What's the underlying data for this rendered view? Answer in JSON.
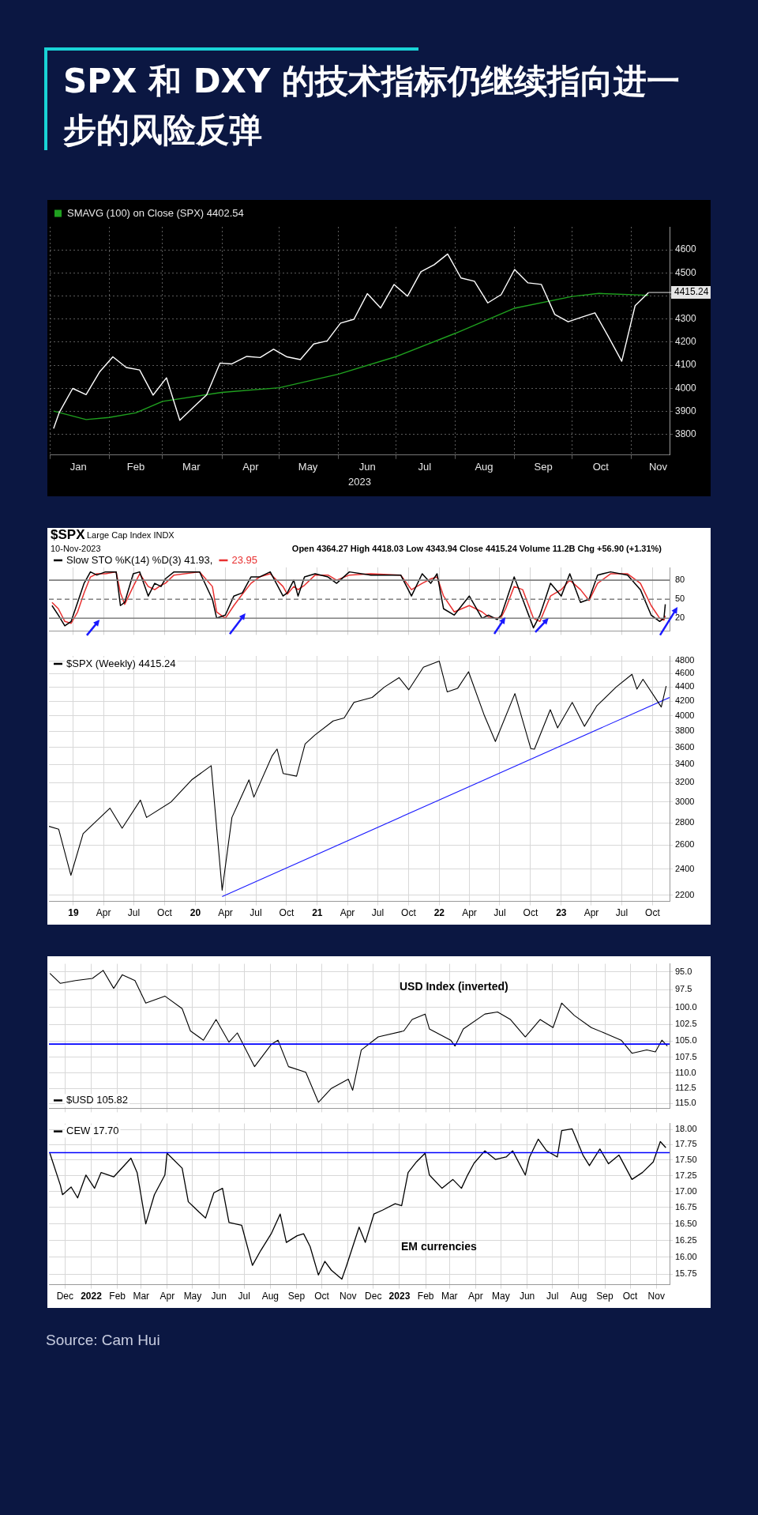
{
  "chart_data": [
    {
      "type": "line",
      "title": "SPX 和 DXY 的技术指标仍继续指向进一步的风险反弹",
      "xlabel": "2023",
      "legend": "top left",
      "grid": true,
      "marker": "none",
      "xlim": [
        "2023-01-01",
        "2023-11-21"
      ],
      "ylim": [
        3710,
        4700
      ],
      "yticks": [
        3800,
        3900,
        4000,
        4100,
        4200,
        4300,
        {
          "value": 4400,
          "label": null
        },
        4500,
        4600
      ],
      "xticks": [
        {
          "value": "2023-01-01",
          "label": null
        },
        {
          "value": "2023-01-16",
          "label": "Jan"
        },
        {
          "value": "2023-02-01",
          "label": null
        },
        {
          "value": "2023-02-15",
          "label": "Feb"
        },
        {
          "value": "2023-03-01",
          "label": null
        },
        {
          "value": "2023-03-16",
          "label": "Mar"
        },
        {
          "value": "2023-04-01",
          "label": null
        },
        {
          "value": "2023-04-16",
          "label": "Apr"
        },
        {
          "value": "2023-05-01",
          "label": null
        },
        {
          "value": "2023-05-16",
          "label": "May"
        },
        {
          "value": "2023-06-01",
          "label": null
        },
        {
          "value": "2023-06-16",
          "label": "Jun"
        },
        {
          "value": "2023-07-01",
          "label": null
        },
        {
          "value": "2023-07-16",
          "label": "Jul"
        },
        {
          "value": "2023-08-01",
          "label": null
        },
        {
          "value": "2023-08-16",
          "label": "Aug"
        },
        {
          "value": "2023-09-01",
          "label": null
        },
        {
          "value": "2023-09-16",
          "label": "Sep"
        },
        {
          "value": "2023-10-01",
          "label": null
        },
        {
          "value": "2023-10-16",
          "label": "Oct"
        },
        {
          "value": "2023-11-01",
          "label": null
        },
        {
          "value": "2023-11-15",
          "label": "Nov"
        }
      ],
      "x": [
        "2023-01-03",
        "2023-01-06",
        "2023-01-13",
        "2023-01-20",
        "2023-01-27",
        "2023-02-03",
        "2023-02-10",
        "2023-02-17",
        "2023-02-24",
        "2023-03-03",
        "2023-03-10",
        "2023-03-17",
        "2023-03-24",
        "2023-03-31",
        "2023-04-06",
        "2023-04-14",
        "2023-04-21",
        "2023-04-28",
        "2023-05-05",
        "2023-05-12",
        "2023-05-19",
        "2023-05-26",
        "2023-06-02",
        "2023-06-09",
        "2023-06-16",
        "2023-06-23",
        "2023-06-30",
        "2023-07-07",
        "2023-07-14",
        "2023-07-21",
        "2023-07-28",
        "2023-08-04",
        "2023-08-11",
        "2023-08-18",
        "2023-08-25",
        "2023-09-01",
        "2023-09-08",
        "2023-09-15",
        "2023-09-22",
        "2023-09-29",
        "2023-10-06",
        "2023-10-13",
        "2023-10-20",
        "2023-10-27",
        "2023-11-03",
        "2023-11-10"
      ],
      "series": [
        {
          "color": "#ffffff",
          "values": [
            3825,
            3895,
            3999,
            3972,
            4070,
            4136,
            4090,
            4079,
            3970,
            4045,
            3861,
            3917,
            3971,
            4109,
            4105,
            4138,
            4133,
            4169,
            4136,
            4124,
            4192,
            4205,
            4282,
            4299,
            4410,
            4348,
            4450,
            4399,
            4505,
            4536,
            4582,
            4478,
            4464,
            4370,
            4406,
            4515,
            4457,
            4450,
            4320,
            4288,
            4308,
            4327,
            4224,
            4117,
            4358,
            4415
          ]
        },
        {
          "name": "SMAVG (100) on Close (SPX) 4402.54",
          "color": "#1fa01f",
          "x": [
            "2023-01-03",
            "2023-01-20",
            "2023-02-01",
            "2023-02-15",
            "2023-03-01",
            "2023-04-01",
            "2023-05-01",
            "2023-06-01",
            "2023-07-01",
            "2023-08-01",
            "2023-09-01",
            "2023-10-01",
            "2023-10-15",
            "2023-11-10"
          ],
          "values": [
            3901,
            3864,
            3873,
            3893,
            3943,
            3982,
            4002,
            4061,
            4137,
            4238,
            4347,
            4398,
            4411,
            4403
          ]
        }
      ],
      "annotations": [
        {
          "text": "4415.24",
          "x": "2023-11-10",
          "y": 4415.24
        }
      ]
    },
    {
      "type": "line",
      "legend": "top left",
      "grid": "x",
      "marker": "none",
      "tick_labels": "y",
      "annotations": [
        "$SPX",
        "Large Cap Index INDX",
        "10-Nov-2023",
        "Open 4364.27 High 4418.03 Low 4343.94 Close 4415.24 Volume 11.2B Chg +56.90 (+1.31%)"
      ],
      "xlim": [
        2018.8,
        2023.888
      ],
      "ylim": [
        0,
        100
      ],
      "yticks": [
        20,
        50,
        80
      ],
      "xticks": [
        {
          "value": 2019,
          "label": null
        },
        {
          "value": 2019.247,
          "label": null
        },
        {
          "value": 2019.496,
          "label": null
        },
        {
          "value": 2019.748,
          "label": null
        },
        {
          "value": 2020,
          "label": null
        },
        {
          "value": 2020.247,
          "label": null
        },
        {
          "value": 2020.496,
          "label": null
        },
        {
          "value": 2020.748,
          "label": null
        },
        {
          "value": 2021,
          "label": null
        },
        {
          "value": 2021.247,
          "label": null
        },
        {
          "value": 2021.496,
          "label": null
        },
        {
          "value": 2021.748,
          "label": null
        },
        {
          "value": 2022,
          "label": null
        },
        {
          "value": 2022.247,
          "label": null
        },
        {
          "value": 2022.496,
          "label": null
        },
        {
          "value": 2022.748,
          "label": null
        },
        {
          "value": 2023,
          "label": null
        },
        {
          "value": 2023.247,
          "label": null
        },
        {
          "value": 2023.496,
          "label": null
        },
        {
          "value": 2023.748,
          "label": null
        }
      ],
      "ref_lines": [
        {
          "axis": "y",
          "value": 20,
          "color": "#808080",
          "line_style": "solid"
        },
        {
          "axis": "y",
          "value": 50,
          "color": "#808080",
          "line_style": "dashed"
        },
        {
          "axis": "y",
          "value": 80,
          "color": "#808080",
          "line_style": "solid"
        }
      ],
      "x": [
        2018.825,
        2018.877,
        2018.93,
        2018.982,
        2019.035,
        2019.088,
        2019.14,
        2019.193,
        2019.263,
        2019.351,
        2019.386,
        2019.421,
        2019.491,
        2019.544,
        2019.614,
        2019.667,
        2019.719,
        2019.754,
        2019.825,
        2020.035,
        2020.14,
        2020.175,
        2020.246,
        2020.316,
        2020.386,
        2020.456,
        2020.526,
        2020.614,
        2020.719,
        2020.754,
        2020.807,
        2020.842,
        2020.895,
        2020.982,
        2021.088,
        2021.158,
        2021.263,
        2021.439,
        2021.684,
        2021.772,
        2021.86,
        2021.93,
        2021.982,
        2022.035,
        2022.123,
        2022.246,
        2022.351,
        2022.404,
        2022.474,
        2022.509,
        2022.544,
        2022.614,
        2022.684,
        2022.772,
        2022.825,
        2022.912,
        2023.0,
        2023.07,
        2023.158,
        2023.228,
        2023.298,
        2023.404,
        2023.544,
        2023.649,
        2023.737,
        2023.807,
        2023.842,
        2023.853
      ],
      "series": [
        {
          "name": "Slow STO %K(14) %D(3) 41.93,",
          "color": "#000000",
          "values": [
            40,
            25,
            8,
            15,
            45,
            75,
            93,
            88,
            93,
            93,
            40,
            45,
            90,
            93,
            55,
            75,
            70,
            82,
            93,
            93,
            50,
            20,
            25,
            55,
            60,
            85,
            85,
            93,
            55,
            60,
            80,
            55,
            85,
            90,
            85,
            75,
            93,
            88,
            88,
            55,
            90,
            75,
            90,
            35,
            25,
            55,
            20,
            25,
            18,
            25,
            45,
            85,
            50,
            5,
            25,
            75,
            55,
            90,
            45,
            50,
            88,
            93,
            88,
            65,
            25,
            15,
            20,
            42
          ]
        },
        {
          "name": "23.95",
          "color": "#e83030",
          "values": [
            45,
            35,
            15,
            12,
            30,
            60,
            85,
            90,
            90,
            93,
            60,
            42,
            70,
            90,
            70,
            65,
            72,
            75,
            88,
            93,
            70,
            30,
            20,
            40,
            58,
            75,
            85,
            90,
            70,
            58,
            70,
            65,
            72,
            88,
            88,
            80,
            88,
            90,
            88,
            65,
            75,
            82,
            85,
            55,
            30,
            40,
            30,
            22,
            20,
            22,
            35,
            70,
            65,
            20,
            15,
            55,
            65,
            80,
            65,
            48,
            75,
            90,
            90,
            75,
            40,
            20,
            17,
            24
          ]
        }
      ]
    },
    {
      "type": "line",
      "legend": "top left",
      "grid": true,
      "marker": "none",
      "log": "y",
      "xlim": [
        2018.8,
        2023.888
      ],
      "ylim": [
        2155,
        4880
      ],
      "yticks": [
        2200,
        2400,
        2600,
        2800,
        3000,
        3200,
        3400,
        3600,
        3800,
        4000,
        4200,
        4400,
        4600,
        4800
      ],
      "xticks": [
        {
          "value": 2019,
          "label": "19"
        },
        {
          "value": 2019.247,
          "label": "Apr"
        },
        {
          "value": 2019.496,
          "label": "Jul"
        },
        {
          "value": 2019.748,
          "label": "Oct"
        },
        {
          "value": 2020,
          "label": "20"
        },
        {
          "value": 2020.247,
          "label": "Apr"
        },
        {
          "value": 2020.496,
          "label": "Jul"
        },
        {
          "value": 2020.748,
          "label": "Oct"
        },
        {
          "value": 2021,
          "label": "21"
        },
        {
          "value": 2021.247,
          "label": "Apr"
        },
        {
          "value": 2021.496,
          "label": "Jul"
        },
        {
          "value": 2021.748,
          "label": "Oct"
        },
        {
          "value": 2022,
          "label": "22"
        },
        {
          "value": 2022.247,
          "label": "Apr"
        },
        {
          "value": 2022.496,
          "label": "Jul"
        },
        {
          "value": 2022.748,
          "label": "Oct"
        },
        {
          "value": 2023,
          "label": "23"
        },
        {
          "value": 2023.247,
          "label": "Apr"
        },
        {
          "value": 2023.496,
          "label": "Jul"
        },
        {
          "value": 2023.748,
          "label": "Oct"
        }
      ],
      "series": [
        {
          "name": "$SPX (Weekly) 4415.24",
          "color": "#000000",
          "x": [
            2018.8,
            2018.88,
            2018.98,
            2019.08,
            2019.3,
            2019.4,
            2019.55,
            2019.6,
            2019.8,
            2019.97,
            2020.13,
            2020.22,
            2020.3,
            2020.44,
            2020.48,
            2020.63,
            2020.67,
            2020.72,
            2020.83,
            2020.9,
            2020.98,
            2021.13,
            2021.22,
            2021.3,
            2021.45,
            2021.55,
            2021.67,
            2021.75,
            2021.87,
            2022.0,
            2022.065,
            2022.15,
            2022.24,
            2022.37,
            2022.46,
            2022.62,
            2022.75,
            2022.78,
            2022.91,
            2022.97,
            2023.09,
            2023.19,
            2023.29,
            2023.45,
            2023.58,
            2023.62,
            2023.67,
            2023.82,
            2023.86
          ],
          "values": [
            2767,
            2740,
            2351,
            2700,
            2940,
            2750,
            3020,
            2850,
            3000,
            3230,
            3386,
            2237,
            2850,
            3230,
            3050,
            3500,
            3580,
            3300,
            3270,
            3640,
            3750,
            3930,
            3970,
            4180,
            4250,
            4400,
            4540,
            4360,
            4700,
            4796,
            4330,
            4380,
            4630,
            4000,
            3670,
            4305,
            3585,
            3577,
            4080,
            3840,
            4180,
            3860,
            4130,
            4400,
            4590,
            4370,
            4515,
            4117,
            4415
          ]
        },
        {
          "type": "line",
          "color": "#1a1aff",
          "x": [
            2020.22,
            2023.888
          ],
          "values": [
            2190,
            4250
          ]
        }
      ]
    },
    {
      "type": "line",
      "legend": "bottom left",
      "grid": true,
      "marker": "none",
      "log": "y",
      "tick_labels": "y",
      "annotations": [
        "USD Index (inverted)"
      ],
      "xlim": [
        2021.863,
        2023.876
      ],
      "ylim": [
        115.8,
        93.9
      ],
      "yticks": [
        {
          "value": 95,
          "label": "95.0"
        },
        {
          "value": 97.5,
          "label": "97.5"
        },
        {
          "value": 100,
          "label": "100.0"
        },
        {
          "value": 102.5,
          "label": "102.5"
        },
        {
          "value": 105,
          "label": "105.0"
        },
        {
          "value": 107.5,
          "label": "107.5"
        },
        {
          "value": 110,
          "label": "110.0"
        },
        {
          "value": 112.5,
          "label": "112.5"
        },
        {
          "value": 115,
          "label": "115.0"
        }
      ],
      "xticks": [
        {
          "value": 2021.915,
          "label": null
        },
        {
          "value": 2022,
          "label": null
        },
        {
          "value": 2022.085,
          "label": null
        },
        {
          "value": 2022.162,
          "label": null
        },
        {
          "value": 2022.247,
          "label": null
        },
        {
          "value": 2022.329,
          "label": null
        },
        {
          "value": 2022.414,
          "label": null
        },
        {
          "value": 2022.496,
          "label": null
        },
        {
          "value": 2022.581,
          "label": null
        },
        {
          "value": 2022.666,
          "label": null
        },
        {
          "value": 2022.748,
          "label": null
        },
        {
          "value": 2022.833,
          "label": null
        },
        {
          "value": 2022.915,
          "label": null
        },
        {
          "value": 2023,
          "label": null
        },
        {
          "value": 2023.085,
          "label": null
        },
        {
          "value": 2023.162,
          "label": null
        },
        {
          "value": 2023.247,
          "label": null
        },
        {
          "value": 2023.329,
          "label": null
        },
        {
          "value": 2023.414,
          "label": null
        },
        {
          "value": 2023.496,
          "label": null
        },
        {
          "value": 2023.581,
          "label": null
        },
        {
          "value": 2023.666,
          "label": null
        },
        {
          "value": 2023.748,
          "label": null
        },
        {
          "value": 2023.833,
          "label": null
        }
      ],
      "ref_lines": [
        {
          "axis": "y",
          "value": 105.5,
          "color": "#0000ff",
          "line_style": "solid"
        }
      ],
      "series": [
        {
          "name": "$USD 105.82",
          "color": "#000000",
          "x": [
            2021.866,
            2021.9,
            2021.949,
            2022.004,
            2022.039,
            2022.073,
            2022.101,
            2022.142,
            2022.177,
            2022.239,
            2022.295,
            2022.322,
            2022.364,
            2022.405,
            2022.447,
            2022.474,
            2022.53,
            2022.585,
            2022.606,
            2022.64,
            2022.696,
            2022.737,
            2022.779,
            2022.834,
            2022.848,
            2022.876,
            2022.931,
            2023.014,
            2023.041,
            2023.083,
            2023.097,
            2023.166,
            2023.18,
            2023.207,
            2023.277,
            2023.318,
            2023.36,
            2023.408,
            2023.456,
            2023.498,
            2023.526,
            2023.567,
            2023.622,
            2023.664,
            2023.719,
            2023.754,
            2023.802,
            2023.83,
            2023.851,
            2023.869
          ],
          "values": [
            95.2,
            96.6,
            96.2,
            95.9,
            94.8,
            97.3,
            95.4,
            96.2,
            99.4,
            98.4,
            100.2,
            103.5,
            104.9,
            101.8,
            105.2,
            103.8,
            109.0,
            105.5,
            104.9,
            109.0,
            109.9,
            114.8,
            112.5,
            111.0,
            112.8,
            106.4,
            104.4,
            103.5,
            101.8,
            101.0,
            103.2,
            104.9,
            105.8,
            103.2,
            101.0,
            100.7,
            101.8,
            104.4,
            101.8,
            103.0,
            99.4,
            101.2,
            103.0,
            103.8,
            104.9,
            106.9,
            106.4,
            106.7,
            104.9,
            105.8
          ]
        }
      ]
    },
    {
      "type": "line",
      "legend": "top left",
      "grid": true,
      "marker": "none",
      "log": "y",
      "annotations": [
        "EM currencies",
        "Source: Cam Hui"
      ],
      "xlim": [
        2021.863,
        2023.876
      ],
      "ylim": [
        15.6,
        18.1
      ],
      "yticks": [
        {
          "value": 15.75,
          "label": "15.75"
        },
        {
          "value": 16,
          "label": "16.00"
        },
        {
          "value": 16.25,
          "label": "16.25"
        },
        {
          "value": 16.5,
          "label": "16.50"
        },
        {
          "value": 16.75,
          "label": "16.75"
        },
        {
          "value": 17,
          "label": "17.00"
        },
        {
          "value": 17.25,
          "label": "17.25"
        },
        {
          "value": 17.5,
          "label": "17.50"
        },
        {
          "value": 17.75,
          "label": "17.75"
        },
        {
          "value": 18,
          "label": "18.00"
        }
      ],
      "xticks": [
        {
          "value": 2021.915,
          "label": "Dec"
        },
        {
          "value": 2022,
          "label": "2022"
        },
        {
          "value": 2022.085,
          "label": "Feb"
        },
        {
          "value": 2022.162,
          "label": "Mar"
        },
        {
          "value": 2022.247,
          "label": "Apr"
        },
        {
          "value": 2022.329,
          "label": "May"
        },
        {
          "value": 2022.414,
          "label": "Jun"
        },
        {
          "value": 2022.496,
          "label": "Jul"
        },
        {
          "value": 2022.581,
          "label": "Aug"
        },
        {
          "value": 2022.666,
          "label": "Sep"
        },
        {
          "value": 2022.748,
          "label": "Oct"
        },
        {
          "value": 2022.833,
          "label": "Nov"
        },
        {
          "value": 2022.915,
          "label": "Dec"
        },
        {
          "value": 2023,
          "label": "2023"
        },
        {
          "value": 2023.085,
          "label": "Feb"
        },
        {
          "value": 2023.162,
          "label": "Mar"
        },
        {
          "value": 2023.247,
          "label": "Apr"
        },
        {
          "value": 2023.329,
          "label": "May"
        },
        {
          "value": 2023.414,
          "label": "Jun"
        },
        {
          "value": 2023.496,
          "label": "Jul"
        },
        {
          "value": 2023.581,
          "label": "Aug"
        },
        {
          "value": 2023.666,
          "label": "Sep"
        },
        {
          "value": 2023.748,
          "label": "Oct"
        },
        {
          "value": 2023.833,
          "label": "Nov"
        }
      ],
      "ref_lines": [
        {
          "axis": "y",
          "value": 17.62,
          "color": "#0000ff",
          "line_style": "solid"
        }
      ],
      "series": [
        {
          "name": "CEW 17.70",
          "color": "#000000",
          "x": [
            2021.866,
            2021.9,
            2021.907,
            2021.935,
            2021.956,
            2021.983,
            2022.011,
            2022.032,
            2022.073,
            2022.129,
            2022.149,
            2022.163,
            2022.177,
            2022.205,
            2022.239,
            2022.246,
            2022.295,
            2022.315,
            2022.35,
            2022.371,
            2022.398,
            2022.426,
            2022.447,
            2022.488,
            2022.523,
            2022.55,
            2022.585,
            2022.613,
            2022.633,
            2022.668,
            2022.689,
            2022.71,
            2022.737,
            2022.758,
            2022.779,
            2022.813,
            2022.827,
            2022.869,
            2022.889,
            2022.917,
            2022.945,
            2022.986,
            2023.007,
            2023.028,
            2023.055,
            2023.083,
            2023.097,
            2023.138,
            2023.173,
            2023.201,
            2023.221,
            2023.242,
            2023.277,
            2023.311,
            2023.346,
            2023.367,
            2023.408,
            2023.422,
            2023.45,
            2023.477,
            2023.512,
            2023.526,
            2023.56,
            2023.595,
            2023.616,
            2023.65,
            2023.678,
            2023.712,
            2023.754,
            2023.788,
            2023.823,
            2023.846,
            2023.864
          ],
          "values": [
            17.61,
            17.1,
            16.95,
            17.07,
            16.9,
            17.26,
            17.05,
            17.3,
            17.23,
            17.53,
            17.3,
            16.9,
            16.5,
            16.95,
            17.26,
            17.61,
            17.37,
            16.84,
            16.68,
            16.59,
            16.98,
            17.05,
            16.52,
            16.48,
            15.88,
            16.1,
            16.36,
            16.65,
            16.22,
            16.32,
            16.35,
            16.16,
            15.74,
            15.94,
            15.81,
            15.68,
            15.86,
            16.45,
            16.22,
            16.65,
            16.71,
            16.81,
            16.78,
            17.3,
            17.47,
            17.61,
            17.26,
            17.05,
            17.19,
            17.05,
            17.26,
            17.45,
            17.65,
            17.51,
            17.55,
            17.65,
            17.26,
            17.55,
            17.84,
            17.65,
            17.55,
            17.98,
            18.01,
            17.58,
            17.41,
            17.68,
            17.44,
            17.58,
            17.19,
            17.3,
            17.47,
            17.8,
            17.7
          ]
        }
      ]
    }
  ]
}
